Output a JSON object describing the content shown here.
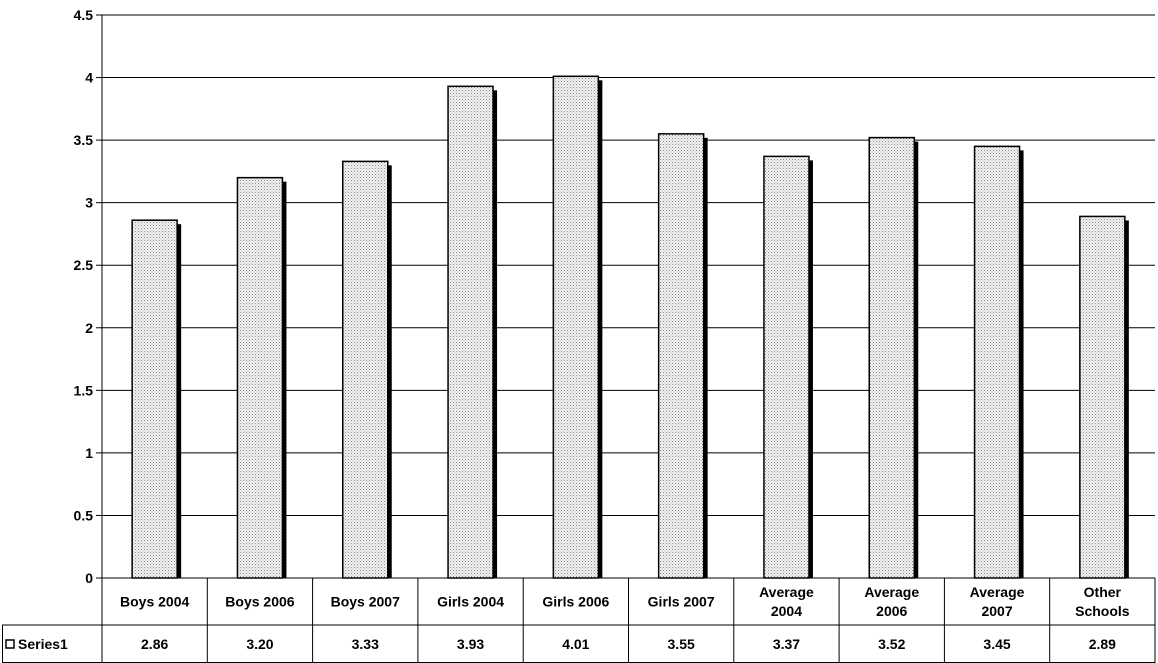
{
  "chart_data": {
    "type": "bar",
    "title": "",
    "xlabel": "",
    "ylabel": "",
    "ylim": [
      0,
      4.5
    ],
    "yticks": [
      0,
      0.5,
      1,
      1.5,
      2,
      2.5,
      3,
      3.5,
      4,
      4.5
    ],
    "ytick_labels": [
      "0",
      "0.5",
      "1",
      "1.5",
      "2",
      "2.5",
      "3",
      "3.5",
      "4",
      "4.5"
    ],
    "grid": true,
    "categories": [
      [
        "Boys 2004"
      ],
      [
        "Boys 2006"
      ],
      [
        "Boys 2007"
      ],
      [
        "Girls 2004"
      ],
      [
        "Girls 2006"
      ],
      [
        "Girls 2007"
      ],
      [
        "Average",
        "2004"
      ],
      [
        "Average",
        "2006"
      ],
      [
        "Average",
        "2007"
      ],
      [
        "Other",
        "Schools"
      ]
    ],
    "series": [
      {
        "name": "Series1",
        "values": [
          2.86,
          3.2,
          3.33,
          3.93,
          4.01,
          3.55,
          3.37,
          3.52,
          3.45,
          2.89
        ],
        "value_labels": [
          "2.86",
          "3.20",
          "3.33",
          "3.93",
          "4.01",
          "3.55",
          "3.37",
          "3.52",
          "3.45",
          "2.89"
        ],
        "fill": "#e6e6e6",
        "pattern": "dotted-grey"
      }
    ],
    "data_table": true,
    "bar_shadow": "#000000"
  }
}
